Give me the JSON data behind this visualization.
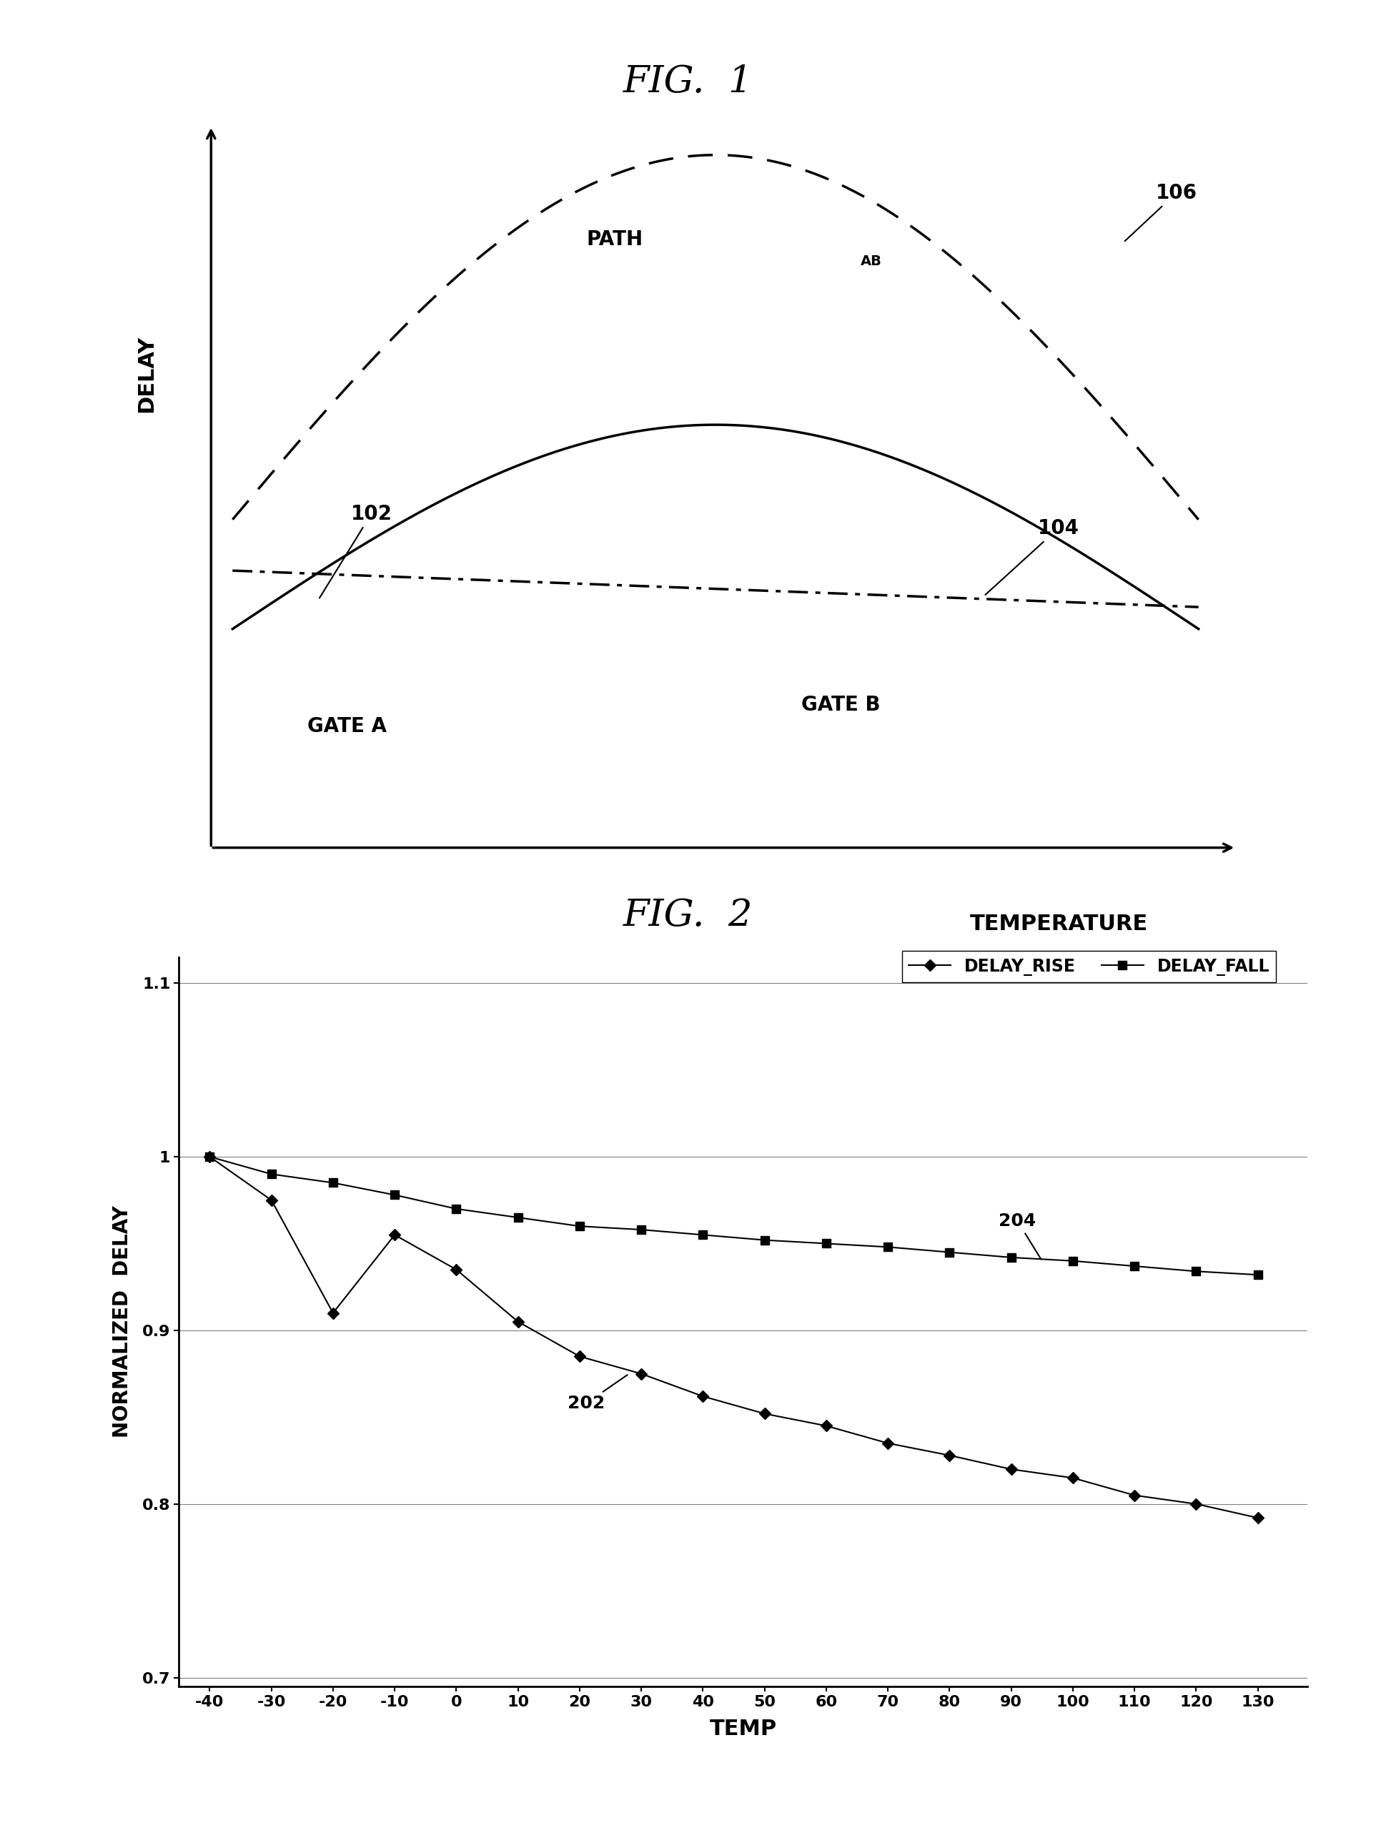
{
  "fig1_title": "FIG.  1",
  "fig2_title": "FIG.  2",
  "fig1_ylabel": "DELAY",
  "fig1_xlabel": "TEMPERATURE",
  "fig2_ylabel": "NORMALIZED  DELAY",
  "fig2_xlabel": "TEMP",
  "gate_a_label": "GATE A",
  "gate_b_label": "GATE B",
  "path_ab_label": "PATH",
  "path_ab_sub": "AB",
  "ref_102": "102",
  "ref_104": "104",
  "ref_106": "106",
  "ref_202": "202",
  "ref_204": "204",
  "delay_rise_label": "DELAY_RISE",
  "delay_fall_label": "DELAY_FALL",
  "fig2_yticks": [
    0.7,
    0.8,
    0.9,
    1.0,
    1.1
  ],
  "fig2_xticks": [
    -40,
    -30,
    -20,
    -10,
    0,
    10,
    20,
    30,
    40,
    50,
    60,
    70,
    80,
    90,
    100,
    110,
    120,
    130
  ],
  "delay_rise_values": [
    1.0,
    0.975,
    0.91,
    0.955,
    0.935,
    0.905,
    0.885,
    0.875,
    0.862,
    0.852,
    0.845,
    0.835,
    0.828,
    0.82,
    0.815,
    0.805,
    0.8,
    0.792
  ],
  "delay_fall_values": [
    1.0,
    0.99,
    0.985,
    0.978,
    0.97,
    0.965,
    0.96,
    0.958,
    0.955,
    0.952,
    0.95,
    0.948,
    0.945,
    0.942,
    0.94,
    0.937,
    0.934,
    0.932
  ],
  "background_color": "#ffffff",
  "line_color": "#000000"
}
